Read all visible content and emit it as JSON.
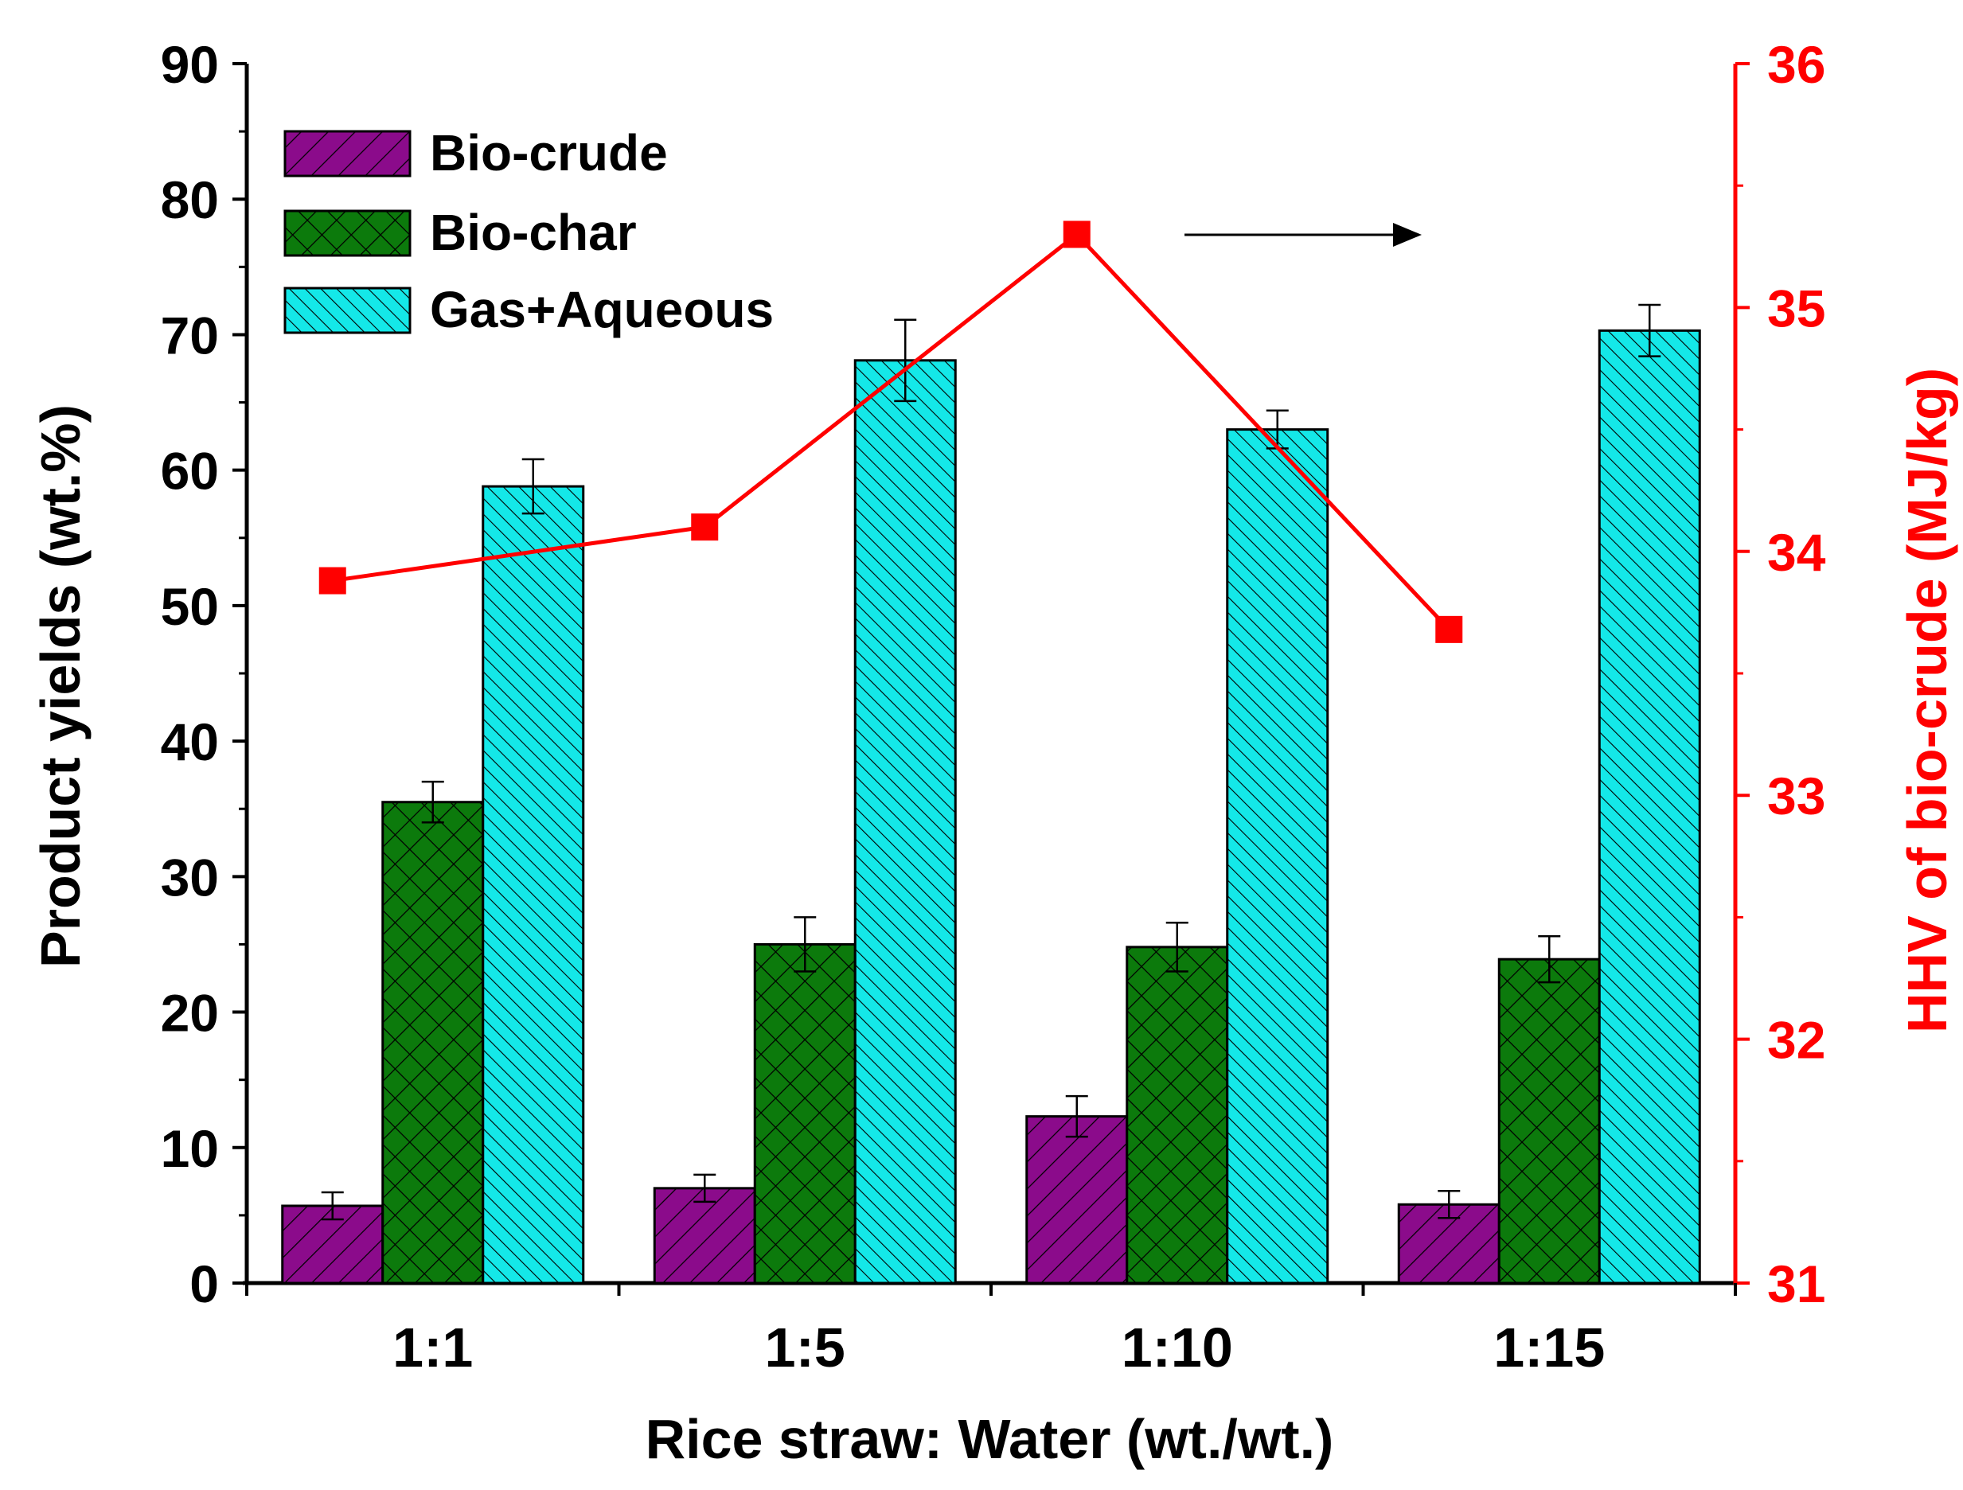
{
  "chart_data": {
    "type": "bar",
    "categories": [
      "1:1",
      "1:5",
      "1:10",
      "1:15"
    ],
    "xlabel": "Rice straw: Water (wt./wt.)",
    "ylabel": "Product yields (wt.%)",
    "ylim": [
      0,
      90
    ],
    "yticks": [
      0,
      10,
      20,
      30,
      40,
      50,
      60,
      70,
      80,
      90
    ],
    "series": [
      {
        "name": "Bio-crude",
        "color": "#8b0b8b",
        "pattern": "diagonal-up",
        "values": [
          5.7,
          7.0,
          12.3,
          5.8
        ],
        "errors": [
          1.0,
          1.0,
          1.5,
          1.0
        ]
      },
      {
        "name": "Bio-char",
        "color": "#0c7a0c",
        "pattern": "crosshatch",
        "values": [
          35.5,
          25.0,
          24.8,
          23.9
        ],
        "errors": [
          1.5,
          2.0,
          1.8,
          1.7
        ]
      },
      {
        "name": "Gas+Aqueous",
        "color": "#14e8e8",
        "pattern": "diagonal-down",
        "values": [
          58.8,
          68.1,
          63.0,
          70.3
        ],
        "errors": [
          2.0,
          3.0,
          1.4,
          1.9
        ]
      }
    ],
    "secondary_axis": {
      "type": "line",
      "name": "HHV of bio-crude (MJ/kg)",
      "ylabel": "HHV of bio-crude (MJ/kg)",
      "ylim": [
        31,
        36
      ],
      "yticks": [
        31,
        32,
        33,
        34,
        35,
        36
      ],
      "color": "#ff0000",
      "values": [
        33.88,
        34.1,
        35.3,
        33.68
      ]
    },
    "legend_position": "top-left",
    "annotation": "arrow pointing to right axis"
  }
}
